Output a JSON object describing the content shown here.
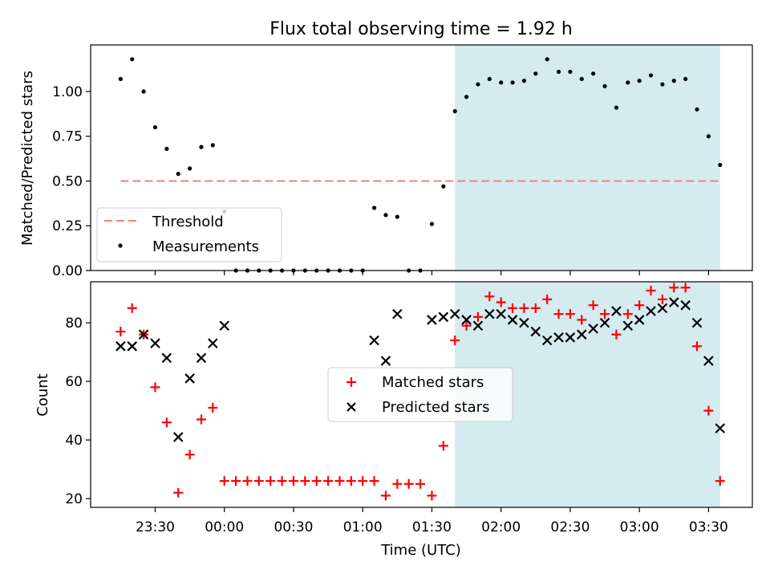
{
  "title": "Flux total observing time = 1.92 h",
  "colors": {
    "shade": "#d4ebf0",
    "threshold": "#f08080",
    "matched": "#ff0000",
    "predicted": "#000000",
    "measurement": "#000000"
  },
  "chart_data": [
    {
      "type": "scatter",
      "ylabel": "Matched/Predicted stars",
      "ylim": [
        0,
        1.26
      ],
      "yticks": [
        "0.00",
        "0.25",
        "0.50",
        "0.75",
        "1.00"
      ],
      "ytick_values": [
        0,
        0.25,
        0.5,
        0.75,
        1.0
      ],
      "shaded_region": {
        "x_start": "01:40",
        "x_end": "03:35"
      },
      "legend": {
        "placement": "lower-left",
        "entries": [
          "Threshold",
          "Measurements"
        ]
      },
      "threshold": {
        "name": "Threshold",
        "value": 0.5,
        "x_start": "23:15",
        "x_end": "03:35"
      },
      "series": [
        {
          "name": "Measurements",
          "x": [
            "23:15",
            "23:20",
            "23:25",
            "23:30",
            "23:35",
            "23:40",
            "23:45",
            "23:50",
            "23:55",
            "00:00",
            "00:05",
            "00:10",
            "00:15",
            "00:20",
            "00:25",
            "00:30",
            "00:35",
            "00:40",
            "00:45",
            "00:50",
            "00:55",
            "01:00",
            "01:05",
            "01:10",
            "01:15",
            "01:20",
            "01:25",
            "01:30",
            "01:35",
            "01:40",
            "01:45",
            "01:50",
            "01:55",
            "02:00",
            "02:05",
            "02:10",
            "02:15",
            "02:20",
            "02:25",
            "02:30",
            "02:35",
            "02:40",
            "02:45",
            "02:50",
            "02:55",
            "03:00",
            "03:05",
            "03:10",
            "03:15",
            "03:20",
            "03:25",
            "03:30",
            "03:35"
          ],
          "y": [
            1.07,
            1.18,
            1.0,
            0.8,
            0.68,
            0.54,
            0.57,
            0.69,
            0.7,
            0.33,
            0.0,
            0.0,
            0.0,
            0.0,
            0.0,
            0.0,
            0.0,
            0.0,
            0.0,
            0.0,
            0.0,
            0.0,
            0.35,
            0.31,
            0.3,
            0.0,
            0.0,
            0.26,
            0.47,
            0.89,
            0.97,
            1.04,
            1.07,
            1.05,
            1.05,
            1.06,
            1.1,
            1.18,
            1.11,
            1.11,
            1.07,
            1.1,
            1.03,
            0.91,
            1.05,
            1.06,
            1.09,
            1.04,
            1.06,
            1.07,
            0.9,
            0.75,
            0.59
          ]
        }
      ]
    },
    {
      "type": "scatter",
      "ylabel": "Count",
      "xlabel": "Time (UTC)",
      "ylim": [
        17,
        94
      ],
      "yticks": [
        "20",
        "40",
        "60",
        "80"
      ],
      "ytick_values": [
        20,
        40,
        60,
        80
      ],
      "xticks": [
        "23:30",
        "00:00",
        "00:30",
        "01:00",
        "01:30",
        "02:00",
        "02:30",
        "03:00",
        "03:30"
      ],
      "xtick_values": [
        "23:30",
        "00:00",
        "00:30",
        "01:00",
        "01:30",
        "02:00",
        "02:30",
        "03:00",
        "03:30"
      ],
      "xlim": [
        "23:02",
        "03:49"
      ],
      "shaded_region": {
        "x_start": "01:40",
        "x_end": "03:35"
      },
      "legend": {
        "placement": "center",
        "entries": [
          "Matched stars",
          "Predicted stars"
        ]
      },
      "series": [
        {
          "name": "Matched stars",
          "marker": "plus",
          "x": [
            "23:15",
            "23:20",
            "23:25",
            "23:30",
            "23:35",
            "23:40",
            "23:45",
            "23:50",
            "23:55",
            "00:00",
            "00:05",
            "00:10",
            "00:15",
            "00:20",
            "00:25",
            "00:30",
            "00:35",
            "00:40",
            "00:45",
            "00:50",
            "00:55",
            "01:00",
            "01:05",
            "01:10",
            "01:15",
            "01:20",
            "01:25",
            "01:30",
            "01:35",
            "01:40",
            "01:45",
            "01:50",
            "01:55",
            "02:00",
            "02:05",
            "02:10",
            "02:15",
            "02:20",
            "02:25",
            "02:30",
            "02:35",
            "02:40",
            "02:45",
            "02:50",
            "02:55",
            "03:00",
            "03:05",
            "03:10",
            "03:15",
            "03:20",
            "03:25",
            "03:30",
            "03:35"
          ],
          "y": [
            77,
            85,
            76,
            58,
            46,
            22,
            35,
            47,
            51,
            26,
            26,
            26,
            26,
            26,
            26,
            26,
            26,
            26,
            26,
            26,
            26,
            26,
            26,
            21,
            25,
            25,
            25,
            21,
            38,
            74,
            79,
            82,
            89,
            87,
            85,
            85,
            85,
            88,
            83,
            83,
            81,
            86,
            83,
            76,
            83,
            86,
            91,
            88,
            92,
            92,
            72,
            50,
            26
          ]
        },
        {
          "name": "Predicted stars",
          "marker": "x",
          "x": [
            "23:15",
            "23:20",
            "23:25",
            "23:30",
            "23:35",
            "23:40",
            "23:45",
            "23:50",
            "23:55",
            "00:00",
            "01:05",
            "01:10",
            "01:15",
            "01:30",
            "01:35",
            "01:40",
            "01:45",
            "01:50",
            "01:55",
            "02:00",
            "02:05",
            "02:10",
            "02:15",
            "02:20",
            "02:25",
            "02:30",
            "02:35",
            "02:40",
            "02:45",
            "02:50",
            "02:55",
            "03:00",
            "03:05",
            "03:10",
            "03:15",
            "03:20",
            "03:25",
            "03:30",
            "03:35"
          ],
          "y": [
            72,
            72,
            76,
            73,
            68,
            41,
            61,
            68,
            73,
            79,
            74,
            67,
            83,
            81,
            82,
            83,
            81,
            79,
            83,
            83,
            81,
            80,
            77,
            74,
            75,
            75,
            76,
            78,
            80,
            84,
            79,
            81,
            84,
            85,
            87,
            86,
            80,
            67,
            44
          ]
        }
      ]
    }
  ]
}
